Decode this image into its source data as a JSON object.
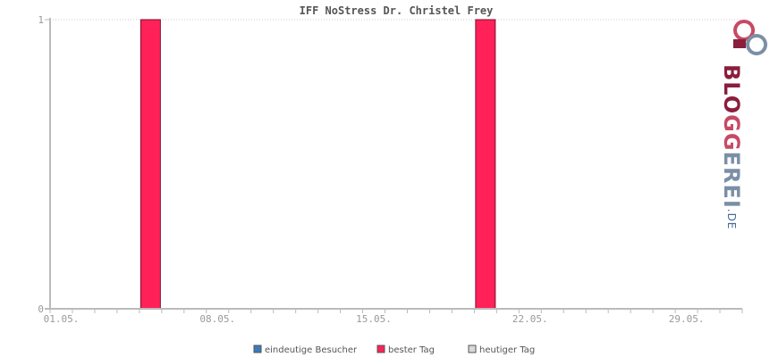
{
  "chart_data": {
    "type": "bar",
    "title": "IFF NoStress Dr. Christel Frey",
    "days": [
      "01.05.",
      "02.05.",
      "03.05.",
      "04.05.",
      "05.05.",
      "06.05.",
      "07.05.",
      "08.05.",
      "09.05.",
      "10.05.",
      "11.05.",
      "12.05.",
      "13.05.",
      "14.05.",
      "15.05.",
      "16.05.",
      "17.05.",
      "18.05.",
      "19.05.",
      "20.05.",
      "21.05.",
      "22.05.",
      "23.05.",
      "24.05.",
      "25.05.",
      "26.05.",
      "27.05.",
      "28.05.",
      "29.05.",
      "30.05.",
      "31.05."
    ],
    "x_tick_labels": [
      "01.05.",
      "08.05.",
      "15.05.",
      "22.05.",
      "29.05."
    ],
    "y_tick_labels": [
      "0",
      "1"
    ],
    "ylim": [
      0,
      1
    ],
    "series": [
      {
        "name": "eindeutige Besucher",
        "color": "#3a7bbf",
        "values": [
          0,
          0,
          0,
          0,
          0,
          0,
          0,
          0,
          0,
          0,
          0,
          0,
          0,
          0,
          0,
          0,
          0,
          0,
          0,
          0,
          0,
          0,
          0,
          0,
          0,
          0,
          0,
          0,
          0,
          0,
          0
        ]
      },
      {
        "name": "bester Tag",
        "color": "#ff2158",
        "values": [
          0,
          0,
          0,
          0,
          1,
          0,
          0,
          0,
          0,
          0,
          0,
          0,
          0,
          0,
          0,
          0,
          0,
          0,
          0,
          1,
          0,
          0,
          0,
          0,
          0,
          0,
          0,
          0,
          0,
          0,
          0
        ]
      },
      {
        "name": "heutiger Tag",
        "color": "#d8d8d8",
        "values": [
          0,
          0,
          0,
          0,
          0,
          0,
          0,
          0,
          0,
          0,
          0,
          0,
          0,
          0,
          0,
          0,
          0,
          0,
          0,
          0,
          0,
          0,
          0,
          0,
          0,
          0,
          0,
          0,
          0,
          0,
          0
        ]
      }
    ],
    "grid": true,
    "legend_position": "bottom"
  },
  "logo": {
    "brand_a": "BLO",
    "brand_b": "GG",
    "brand_c": "EREI",
    "brand_d": ".DE"
  }
}
